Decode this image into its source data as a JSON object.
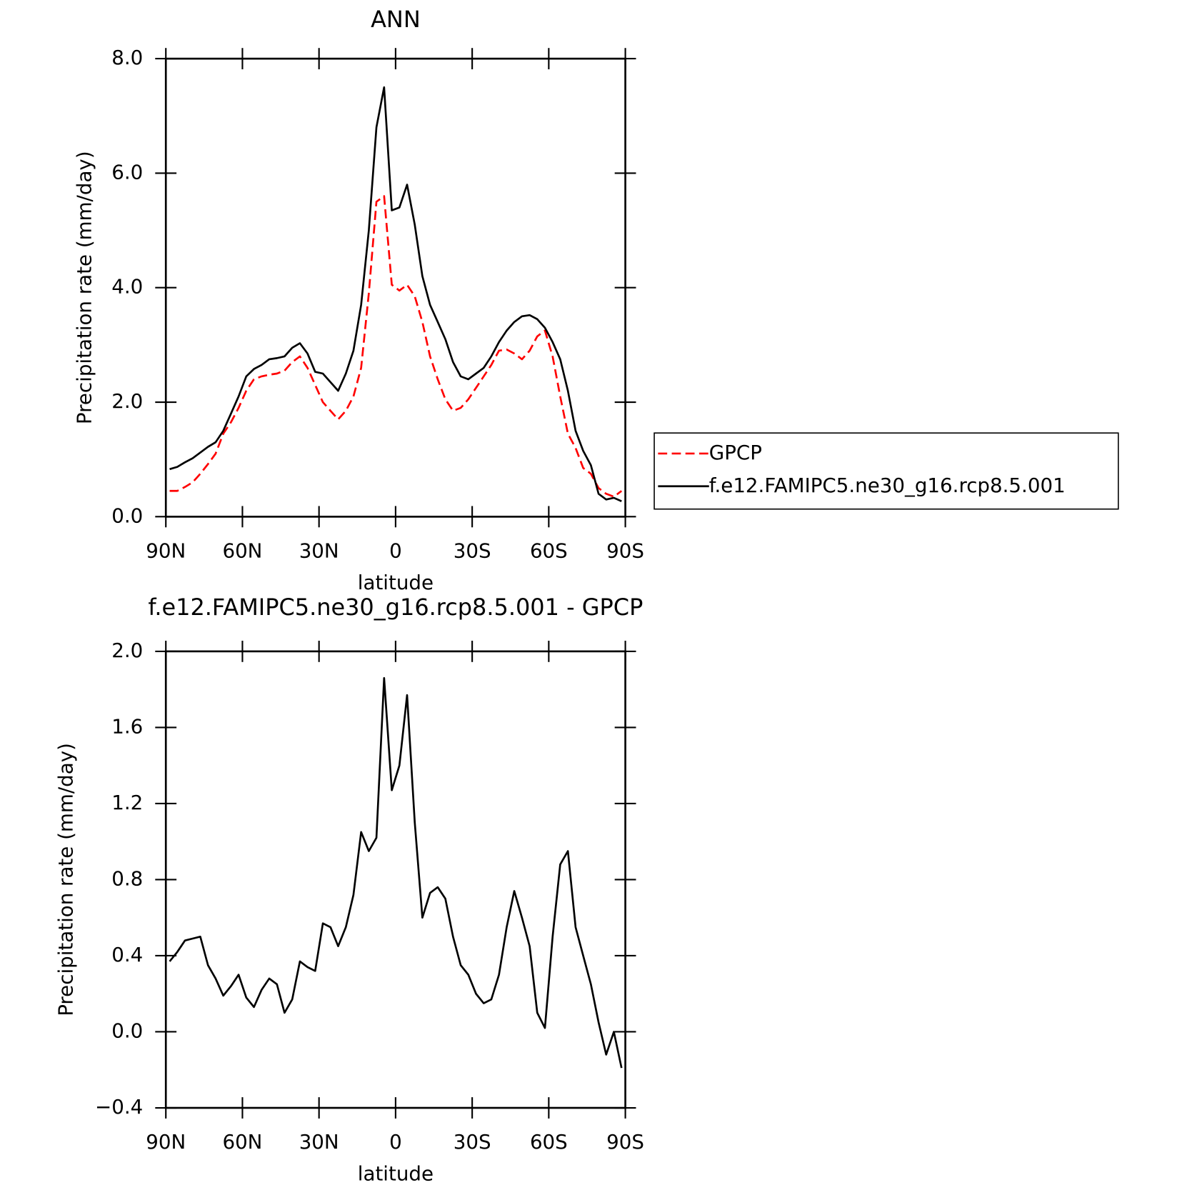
{
  "chart_data": [
    {
      "type": "line",
      "title": "ANN",
      "x_label": "latitude",
      "y_label": "Precipitation rate (mm/day)",
      "x": [
        88.5,
        85.5,
        82.5,
        79.5,
        76.5,
        73.5,
        70.5,
        67.5,
        64.5,
        61.5,
        58.5,
        55.5,
        52.5,
        49.5,
        46.5,
        43.5,
        40.5,
        37.5,
        34.5,
        31.5,
        28.5,
        25.5,
        22.5,
        19.5,
        16.5,
        13.5,
        10.5,
        7.5,
        4.5,
        1.5,
        -1.5,
        -4.5,
        -7.5,
        -10.5,
        -13.5,
        -16.5,
        -19.5,
        -22.5,
        -25.5,
        -28.5,
        -31.5,
        -34.5,
        -37.5,
        -40.5,
        -43.5,
        -46.5,
        -49.5,
        -52.5,
        -55.5,
        -58.5,
        -61.5,
        -64.5,
        -67.5,
        -70.5,
        -73.5,
        -76.5,
        -79.5,
        -82.5,
        -85.5,
        -88.5
      ],
      "xlim": [
        90,
        -90
      ],
      "xticks": [
        {
          "value": 90,
          "label": "90N"
        },
        {
          "value": 60,
          "label": "60N"
        },
        {
          "value": 30,
          "label": "30N"
        },
        0,
        {
          "value": -30,
          "label": "30S"
        },
        {
          "value": -60,
          "label": "60S"
        },
        {
          "value": -90,
          "label": "90S"
        }
      ],
      "ylim": [
        0,
        8
      ],
      "yticks": [
        {
          "value": 0,
          "label": "0.0"
        },
        {
          "value": 2,
          "label": "2.0"
        },
        {
          "value": 4,
          "label": "4.0"
        },
        {
          "value": 6,
          "label": "6.0"
        },
        {
          "value": 8,
          "label": "8.0"
        }
      ],
      "legend": "right",
      "series": [
        {
          "name": "GPCP",
          "color": "#ff0000",
          "line_style": "dashed",
          "values": [
            0.45,
            0.45,
            0.52,
            0.6,
            0.75,
            0.92,
            1.1,
            1.45,
            1.65,
            1.9,
            2.2,
            2.4,
            2.45,
            2.48,
            2.5,
            2.55,
            2.7,
            2.8,
            2.6,
            2.3,
            2.0,
            1.85,
            1.7,
            1.85,
            2.1,
            2.6,
            3.9,
            5.5,
            5.6,
            4.05,
            3.95,
            4.05,
            3.85,
            3.4,
            2.8,
            2.4,
            2.05,
            1.85,
            1.9,
            2.05,
            2.25,
            2.45,
            2.65,
            2.9,
            2.92,
            2.85,
            2.75,
            2.9,
            3.15,
            3.25,
            2.8,
            2.1,
            1.45,
            1.2,
            0.85,
            0.75,
            0.5,
            0.4,
            0.35,
            0.45
          ]
        },
        {
          "name": "f.e12.FAMIPC5.ne30_g16.rcp8.5.001",
          "color": "#000000",
          "line_style": "solid",
          "values": [
            0.83,
            0.87,
            0.95,
            1.02,
            1.12,
            1.22,
            1.3,
            1.5,
            1.8,
            2.1,
            2.45,
            2.58,
            2.65,
            2.75,
            2.77,
            2.8,
            2.95,
            3.03,
            2.85,
            2.53,
            2.5,
            2.35,
            2.2,
            2.5,
            2.9,
            3.7,
            5.0,
            6.8,
            7.5,
            5.35,
            5.4,
            5.8,
            5.1,
            4.2,
            3.7,
            3.4,
            3.1,
            2.7,
            2.45,
            2.4,
            2.5,
            2.6,
            2.8,
            3.05,
            3.25,
            3.4,
            3.5,
            3.52,
            3.45,
            3.3,
            3.05,
            2.75,
            2.2,
            1.5,
            1.15,
            0.9,
            0.4,
            0.3,
            0.33,
            0.27
          ]
        }
      ]
    },
    {
      "type": "line",
      "title": "f.e12.FAMIPC5.ne30_g16.rcp8.5.001 - GPCP",
      "x_label": "latitude",
      "y_label": "Precipitation rate (mm/day)",
      "x": [
        88.5,
        85.5,
        82.5,
        79.5,
        76.5,
        73.5,
        70.5,
        67.5,
        64.5,
        61.5,
        58.5,
        55.5,
        52.5,
        49.5,
        46.5,
        43.5,
        40.5,
        37.5,
        34.5,
        31.5,
        28.5,
        25.5,
        22.5,
        19.5,
        16.5,
        13.5,
        10.5,
        7.5,
        4.5,
        1.5,
        -1.5,
        -4.5,
        -7.5,
        -10.5,
        -13.5,
        -16.5,
        -19.5,
        -22.5,
        -25.5,
        -28.5,
        -31.5,
        -34.5,
        -37.5,
        -40.5,
        -43.5,
        -46.5,
        -49.5,
        -52.5,
        -55.5,
        -58.5,
        -61.5,
        -64.5,
        -67.5,
        -70.5,
        -73.5,
        -76.5,
        -79.5,
        -82.5,
        -85.5,
        -88.5
      ],
      "xlim": [
        90,
        -90
      ],
      "xticks": [
        {
          "value": 90,
          "label": "90N"
        },
        {
          "value": 60,
          "label": "60N"
        },
        {
          "value": 30,
          "label": "30N"
        },
        0,
        {
          "value": -30,
          "label": "30S"
        },
        {
          "value": -60,
          "label": "60S"
        },
        {
          "value": -90,
          "label": "90S"
        }
      ],
      "ylim": [
        -0.4,
        2
      ],
      "yticks": [
        {
          "value": -0.4,
          "label": "−0.4"
        },
        {
          "value": 0,
          "label": "0.0"
        },
        0.4,
        0.8,
        1.2,
        1.6,
        {
          "value": 2,
          "label": "2.0"
        }
      ],
      "series": [
        {
          "color": "#000000",
          "line_style": "solid",
          "values": [
            0.37,
            0.42,
            0.48,
            0.49,
            0.5,
            0.35,
            0.28,
            0.19,
            0.24,
            0.3,
            0.18,
            0.13,
            0.22,
            0.28,
            0.25,
            0.1,
            0.17,
            0.37,
            0.34,
            0.32,
            0.57,
            0.55,
            0.45,
            0.55,
            0.72,
            1.05,
            0.95,
            1.02,
            1.86,
            1.27,
            1.4,
            1.77,
            1.1,
            0.6,
            0.73,
            0.76,
            0.7,
            0.5,
            0.35,
            0.3,
            0.2,
            0.15,
            0.17,
            0.3,
            0.55,
            0.74,
            0.6,
            0.45,
            0.1,
            0.02,
            0.5,
            0.88,
            0.95,
            0.55,
            0.4,
            0.25,
            0.05,
            -0.12,
            0.0,
            -0.19
          ]
        }
      ]
    }
  ]
}
